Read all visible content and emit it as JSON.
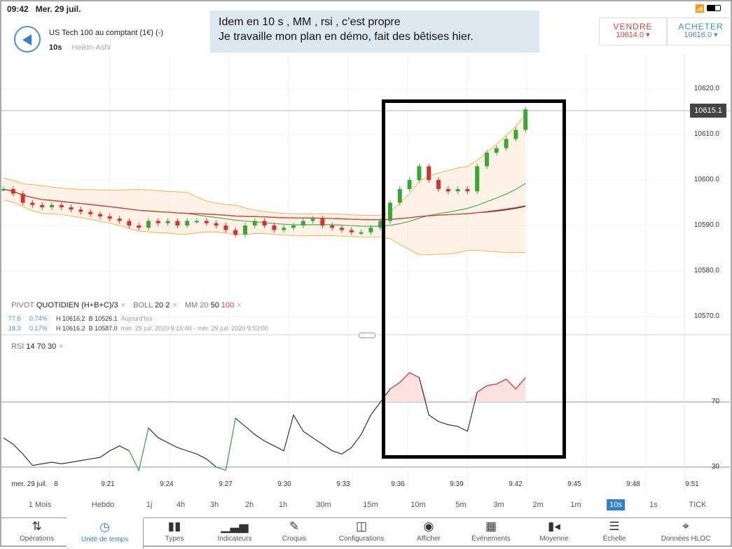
{
  "status": {
    "time": "09:42",
    "date": "Mer. 29 juil.",
    "icons": [
      "wifi-icon",
      "battery-icon"
    ]
  },
  "header": {
    "instrument": "US Tech 100 au comptant (1€) (-)",
    "timeframe": "10s",
    "chart_type": "Heikin-Ashi"
  },
  "annotation": {
    "line1": "Idem en 10 s , MM , rsi , c’est propre",
    "line2": "Je travaille mon plan en démo, fait des bêtises hier."
  },
  "sell": {
    "label": "VENDRE",
    "price": "10614.0",
    "color": "#d9403a"
  },
  "buy": {
    "label": "ACHETER",
    "price": "10616.0",
    "color": "#3a8fd6"
  },
  "legend": {
    "pivot": "PIVOT",
    "quotidien": "QUOTIDIEN",
    "formula": "(H+B+C)/3",
    "boll": "BOLL",
    "boll_p": "20",
    "boll_d": "2",
    "mm": "MM",
    "mm20": "20",
    "mm50": "50",
    "mm100": "100",
    "x": "×"
  },
  "pivot_rows": [
    {
      "v": "77.6",
      "pct": "0.74%",
      "h": "H 10616.2",
      "b": "B 10526.1",
      "period": "Aujourd'hui"
    },
    {
      "v": "18.3",
      "pct": "0.17%",
      "h": "H 10616.2",
      "b": "B 10587.0",
      "period": "mer. 29 juil. 2020 9:15:40 - mer. 29 juil. 2020 9:53:00"
    }
  ],
  "rsi_legend": {
    "label": "RSI",
    "p": "14",
    "hi": "70",
    "lo": "30",
    "x": "×"
  },
  "price_axis": [
    "10620.0",
    "10610.0",
    "10600.0",
    "10590.0",
    "10580.0",
    "10570.0"
  ],
  "current_price": "10615.1",
  "rsi_axis": [
    "70",
    "30"
  ],
  "time_axis": [
    "mer. 29 juil.",
    "8",
    "9:21",
    "9:24",
    "9:27",
    "9:30",
    "9:33",
    "9:36",
    "9:39",
    "9:42",
    "9:45",
    "9:48",
    "9:51"
  ],
  "timeframes": [
    "1 Mois",
    "Hebdo",
    "1j",
    "4h",
    "3h",
    "2h",
    "1h",
    "30m",
    "15m",
    "10m",
    "5m",
    "3m",
    "2m",
    "1m",
    "10s",
    "1s",
    "TICK"
  ],
  "selected_timeframe": "10s",
  "toolbar": [
    {
      "label": "Opérations",
      "icon": "arrows-updown-icon"
    },
    {
      "label": "Unité de temps",
      "icon": "clock-icon"
    },
    {
      "label": "Types",
      "icon": "candles-icon"
    },
    {
      "label": "Indicateurs",
      "icon": "bar-chart-icon"
    },
    {
      "label": "Croquis",
      "icon": "pencil-icon"
    },
    {
      "label": "Configurations",
      "icon": "layout-icon"
    },
    {
      "label": "Afficher",
      "icon": "eye-icon"
    },
    {
      "label": "Événements",
      "icon": "calendar-icon"
    },
    {
      "label": "Moyenne",
      "icon": "average-icon"
    },
    {
      "label": "Échelle",
      "icon": "scale-icon"
    },
    {
      "label": "Données HLOC",
      "icon": "crosshair-icon"
    }
  ],
  "selected_tool": "Unité de temps",
  "chart_data": {
    "type": "line",
    "x_start": "9:15:40",
    "x_step_seconds": 30,
    "close": [
      10598,
      10597,
      10595,
      10594.5,
      10594,
      10594.5,
      10594,
      10593.5,
      10593,
      10592.5,
      10592,
      10591.5,
      10591,
      10590,
      10589.5,
      10591,
      10590.5,
      10591,
      10590,
      10591,
      10591,
      10590.5,
      10590,
      10589,
      10588,
      10590,
      10591,
      10590,
      10589,
      10589.5,
      10590,
      10591,
      10591.5,
      10590,
      10589.5,
      10589,
      10588.5,
      10588.5,
      10589.5,
      10591,
      10595,
      10598,
      10600,
      10603,
      10600,
      10598,
      10597.5,
      10598,
      10597.5,
      10603,
      10606,
      10607,
      10609,
      10611,
      10615.5
    ],
    "rsi": [
      48,
      44,
      38,
      31,
      32,
      33,
      32,
      33,
      34,
      35,
      36,
      40,
      43,
      40,
      28,
      54,
      48,
      45,
      42,
      40,
      38,
      35,
      30,
      28,
      60,
      55,
      50,
      46,
      43,
      40,
      62,
      52,
      48,
      44,
      40,
      38,
      42,
      50,
      62,
      70,
      78,
      82,
      88,
      85,
      62,
      58,
      56,
      55,
      52,
      76,
      80,
      81,
      84,
      78,
      85
    ],
    "ylim": [
      10565,
      10625
    ],
    "rsi_levels": [
      70,
      30
    ],
    "colors": {
      "up": "#3aa63a",
      "down": "#d6322c",
      "boll": "#f0b44a",
      "mm20": "#4caf50",
      "mm50": "#333333",
      "mm100": "#d9403a"
    }
  }
}
